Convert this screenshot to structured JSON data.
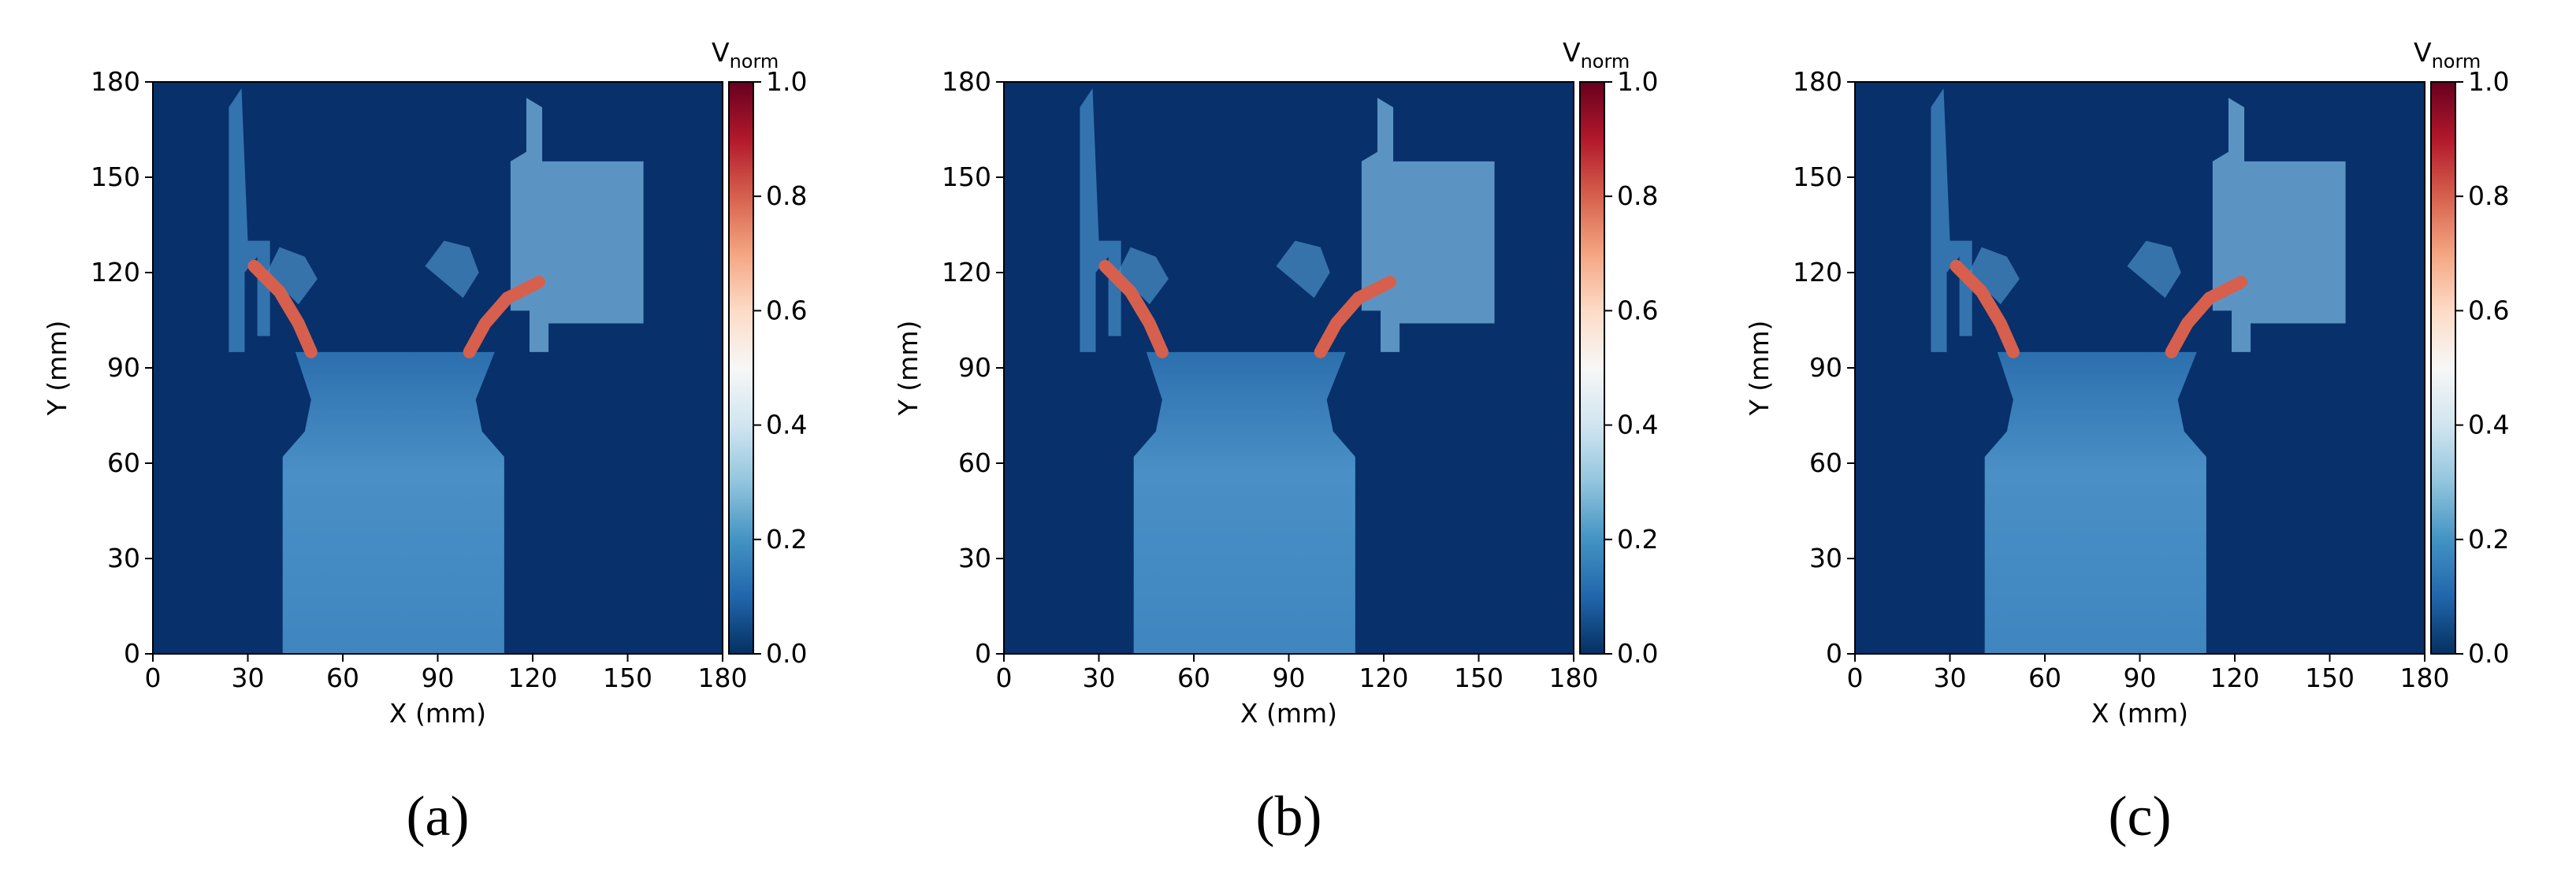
{
  "chart_data": [
    {
      "type": "heatmap",
      "caption": "(a)",
      "x_label": "X (mm)",
      "y_label": "Y (mm)",
      "xlim": [
        0,
        180
      ],
      "ylim": [
        0,
        180
      ],
      "xticks": [
        0,
        30,
        60,
        90,
        120,
        150,
        180
      ],
      "yticks": [
        0,
        30,
        60,
        90,
        120,
        150,
        180
      ],
      "colorbar": {
        "label": "V",
        "label_sub": "norm",
        "lim": [
          0,
          1
        ],
        "ticks": [
          {
            "value": 0,
            "label": "0.0"
          },
          {
            "value": 0.2,
            "label": "0.2"
          },
          {
            "value": 0.4,
            "label": "0.4"
          },
          {
            "value": 0.6,
            "label": "0.6"
          },
          {
            "value": 0.8,
            "label": "0.8"
          },
          {
            "value": 1,
            "label": "1.0"
          }
        ],
        "colormap": "RdBu_r"
      }
    },
    {
      "type": "heatmap",
      "caption": "(b)",
      "x_label": "X (mm)",
      "y_label": "Y (mm)",
      "xlim": [
        0,
        180
      ],
      "ylim": [
        0,
        180
      ],
      "xticks": [
        0,
        30,
        60,
        90,
        120,
        150,
        180
      ],
      "yticks": [
        0,
        30,
        60,
        90,
        120,
        150,
        180
      ],
      "colorbar": {
        "label": "V",
        "label_sub": "norm",
        "lim": [
          0,
          1
        ],
        "ticks": [
          {
            "value": 0,
            "label": "0.0"
          },
          {
            "value": 0.2,
            "label": "0.2"
          },
          {
            "value": 0.4,
            "label": "0.4"
          },
          {
            "value": 0.6,
            "label": "0.6"
          },
          {
            "value": 0.8,
            "label": "0.8"
          },
          {
            "value": 1,
            "label": "1.0"
          }
        ],
        "colormap": "RdBu_r"
      }
    },
    {
      "type": "heatmap",
      "caption": "(c)",
      "x_label": "X (mm)",
      "y_label": "Y (mm)",
      "xlim": [
        0,
        180
      ],
      "ylim": [
        0,
        180
      ],
      "xticks": [
        0,
        30,
        60,
        90,
        120,
        150,
        180
      ],
      "yticks": [
        0,
        30,
        60,
        90,
        120,
        150,
        180
      ],
      "colorbar": {
        "label": "V",
        "label_sub": "norm",
        "lim": [
          0,
          1
        ],
        "ticks": [
          {
            "value": 0,
            "label": "0.0"
          },
          {
            "value": 0.2,
            "label": "0.2"
          },
          {
            "value": 0.4,
            "label": "0.4"
          },
          {
            "value": 0.6,
            "label": "0.6"
          },
          {
            "value": 0.8,
            "label": "0.8"
          },
          {
            "value": 1,
            "label": "1.0"
          }
        ],
        "colormap": "RdBu_r"
      }
    }
  ]
}
